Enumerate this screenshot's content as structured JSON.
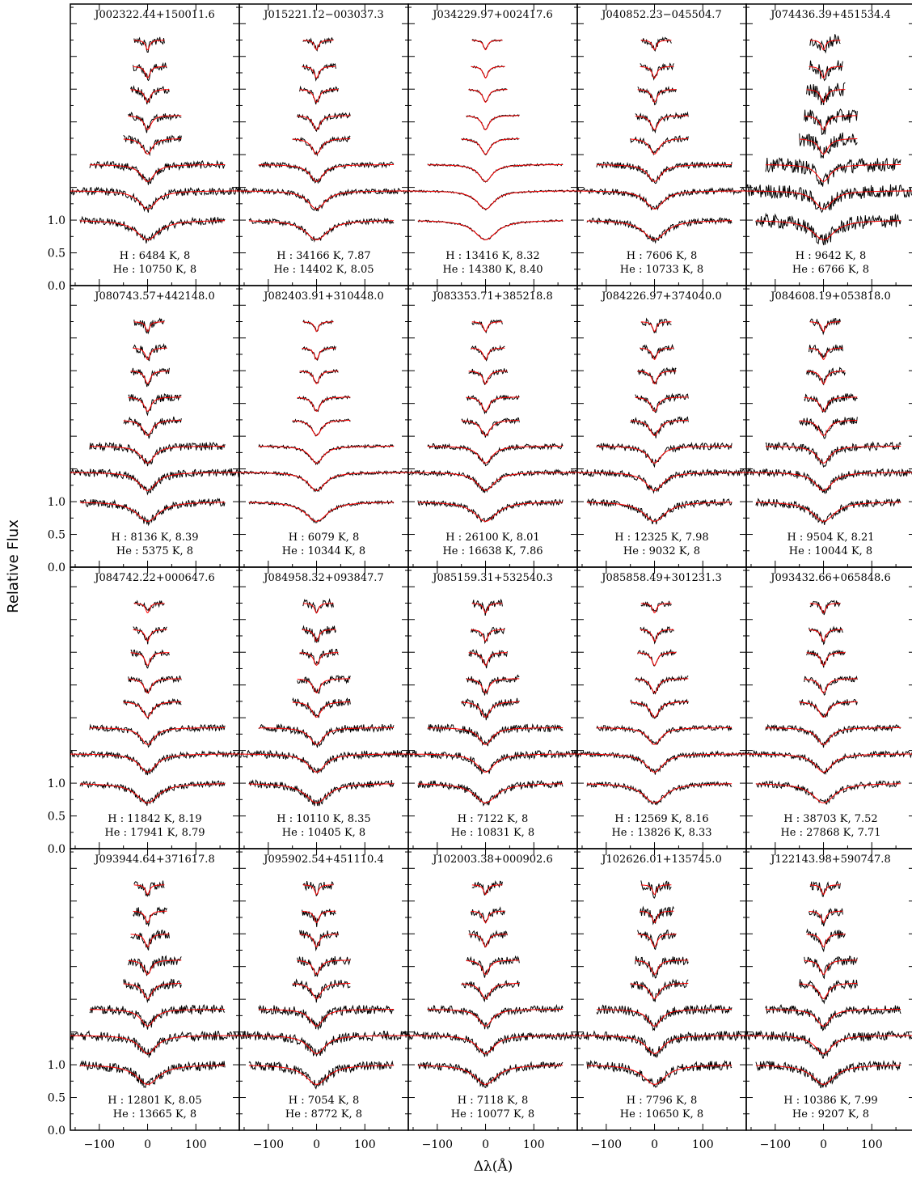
{
  "chart_data": {
    "type": "line",
    "xlabel": "Δλ(Å)",
    "ylabel": "Relative Flux",
    "xlim": [
      -160,
      190
    ],
    "ylim": [
      0,
      4.3
    ],
    "x_ticks": [
      "−100",
      "0",
      "100"
    ],
    "x_tick_values": [
      -100,
      0,
      100
    ],
    "y_ticks": [
      "0.0",
      "0.5",
      "1.0"
    ],
    "y_tick_values": [
      0,
      0.5,
      1.0
    ],
    "series_colors": {
      "observed": "#000000",
      "model": "#ff0000"
    },
    "panels": [
      {
        "name": "J002322.44+150011.6",
        "h_label": "H :  6484 K, 8",
        "he_label": "He : 10750 K, 8"
      },
      {
        "name": "J015221.12−003037.3",
        "h_label": "H : 34166 K, 7.87",
        "he_label": "He : 14402 K, 8.05"
      },
      {
        "name": "J034229.97+002417.6",
        "h_label": "H : 13416 K, 8.32",
        "he_label": "He : 14380 K, 8.40"
      },
      {
        "name": "J040852.23−045504.7",
        "h_label": "H :  7606 K, 8",
        "he_label": "He : 10733 K, 8"
      },
      {
        "name": "J074436.39+451534.4",
        "h_label": "H :  9642 K, 8",
        "he_label": "He :  6766 K, 8"
      },
      {
        "name": "J080743.57+442148.0",
        "h_label": "H :  8136 K, 8.39",
        "he_label": "He :  5375 K, 8"
      },
      {
        "name": "J082403.91+310448.0",
        "h_label": "H :  6079 K, 8",
        "he_label": "He : 10344 K, 8"
      },
      {
        "name": "J083353.71+385218.8",
        "h_label": "H : 26100 K, 8.01",
        "he_label": "He : 16638 K, 7.86"
      },
      {
        "name": "J084226.97+374040.0",
        "h_label": "H : 12325 K, 7.98",
        "he_label": "He :  9032 K, 8"
      },
      {
        "name": "J084608.19+053818.0",
        "h_label": "H :  9504 K, 8.21",
        "he_label": "He : 10044 K, 8"
      },
      {
        "name": "J084742.22+000647.6",
        "h_label": "H : 11842 K, 8.19",
        "he_label": "He : 17941 K, 8.79"
      },
      {
        "name": "J084958.32+093847.7",
        "h_label": "H : 10110 K, 8.35",
        "he_label": "He : 10405 K, 8"
      },
      {
        "name": "J085159.31+532540.3",
        "h_label": "H :  7122 K, 8",
        "he_label": "He : 10831 K, 8"
      },
      {
        "name": "J085858.49+301231.3",
        "h_label": "H : 12569 K, 8.16",
        "he_label": "He : 13826 K, 8.33"
      },
      {
        "name": "J093432.66+065848.6",
        "h_label": "H : 38703 K, 7.52",
        "he_label": "He : 27868 K, 7.71"
      },
      {
        "name": "J093944.64+371617.8",
        "h_label": "H : 12801 K, 8.05",
        "he_label": "He : 13665 K, 8"
      },
      {
        "name": "J095902.54+451110.4",
        "h_label": "H :  7054 K, 8",
        "he_label": "He :  8772 K, 8"
      },
      {
        "name": "J102003.38+000902.6",
        "h_label": "H :  7118 K, 8",
        "he_label": "He : 10077 K, 8"
      },
      {
        "name": "J102626.01+135745.0",
        "h_label": "H :  7796 K, 8",
        "he_label": "He : 10650 K, 8"
      },
      {
        "name": "J122143.98+590747.8",
        "h_label": "H : 10386 K, 7.99",
        "he_label": "He :  9207 K, 8"
      }
    ],
    "line_profiles": [
      {
        "order": 1,
        "x_range": [
          -140,
          160
        ],
        "offset": 1.0,
        "depth": 0.3,
        "width": 28
      },
      {
        "order": 2,
        "x_range": [
          -160,
          190
        ],
        "offset": 1.45,
        "depth": 0.28,
        "width": 22
      },
      {
        "order": 3,
        "x_range": [
          -120,
          160
        ],
        "offset": 1.85,
        "depth": 0.26,
        "width": 17
      },
      {
        "order": 4,
        "x_range": [
          -50,
          70
        ],
        "offset": 2.25,
        "depth": 0.24,
        "width": 12
      },
      {
        "order": 5,
        "x_range": [
          -40,
          70
        ],
        "offset": 2.6,
        "depth": 0.22,
        "width": 9
      },
      {
        "order": 6,
        "x_range": [
          -35,
          45
        ],
        "offset": 3.0,
        "depth": 0.2,
        "width": 7
      },
      {
        "order": 7,
        "x_range": [
          -30,
          40
        ],
        "offset": 3.35,
        "depth": 0.18,
        "width": 6
      },
      {
        "order": 8,
        "x_range": [
          -28,
          35
        ],
        "offset": 3.75,
        "depth": 0.15,
        "width": 5
      }
    ]
  }
}
